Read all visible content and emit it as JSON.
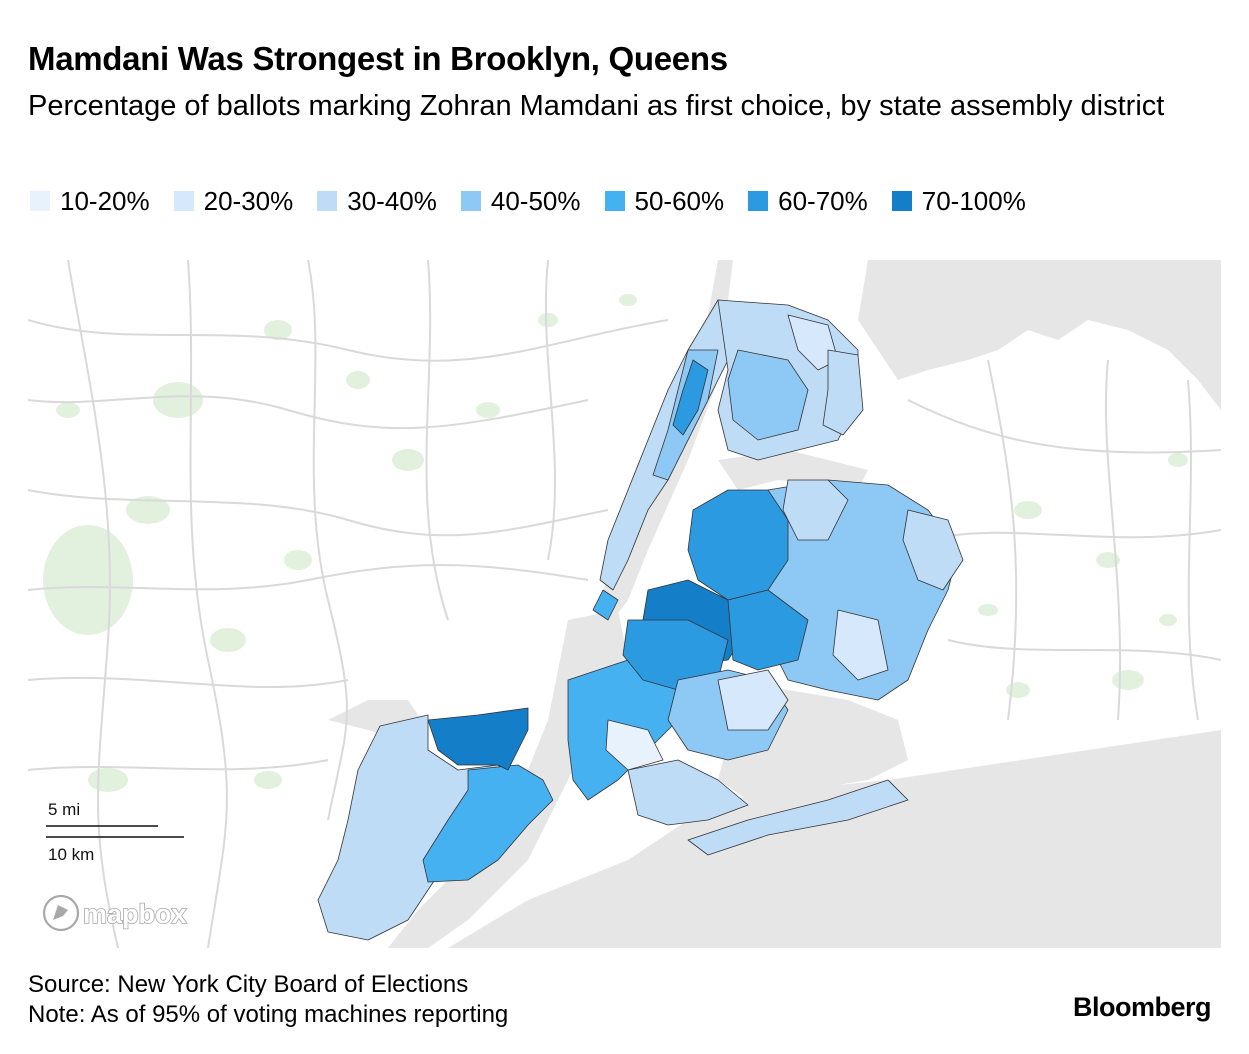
{
  "header": {
    "title": "Mamdani Was Strongest in Brooklyn, Queens",
    "subtitle": "Percentage of ballots marking Zohran Mamdani as first choice, by state assembly district"
  },
  "legend": {
    "items": [
      {
        "label": "10-20%",
        "color": "#e8f2fc"
      },
      {
        "label": "20-30%",
        "color": "#d6e8fb"
      },
      {
        "label": "30-40%",
        "color": "#bfdcf7"
      },
      {
        "label": "40-50%",
        "color": "#8ec8f4"
      },
      {
        "label": "50-60%",
        "color": "#46b1f0"
      },
      {
        "label": "60-70%",
        "color": "#2c9ae0"
      },
      {
        "label": "70-100%",
        "color": "#147fc8"
      }
    ]
  },
  "map": {
    "base_colors": {
      "land": "#ffffff",
      "water": "#e6e6e6",
      "parks": "#e2f1de",
      "roads": "#d9d9d9"
    },
    "scale_bar": {
      "miles_label": "5 mi",
      "km_label": "10 km"
    },
    "attribution_logo": "mapbox"
  },
  "footer": {
    "source": "Source: New York City Board of Elections",
    "note": "Note: As of 95% of voting machines reporting",
    "brand": "Bloomberg"
  }
}
